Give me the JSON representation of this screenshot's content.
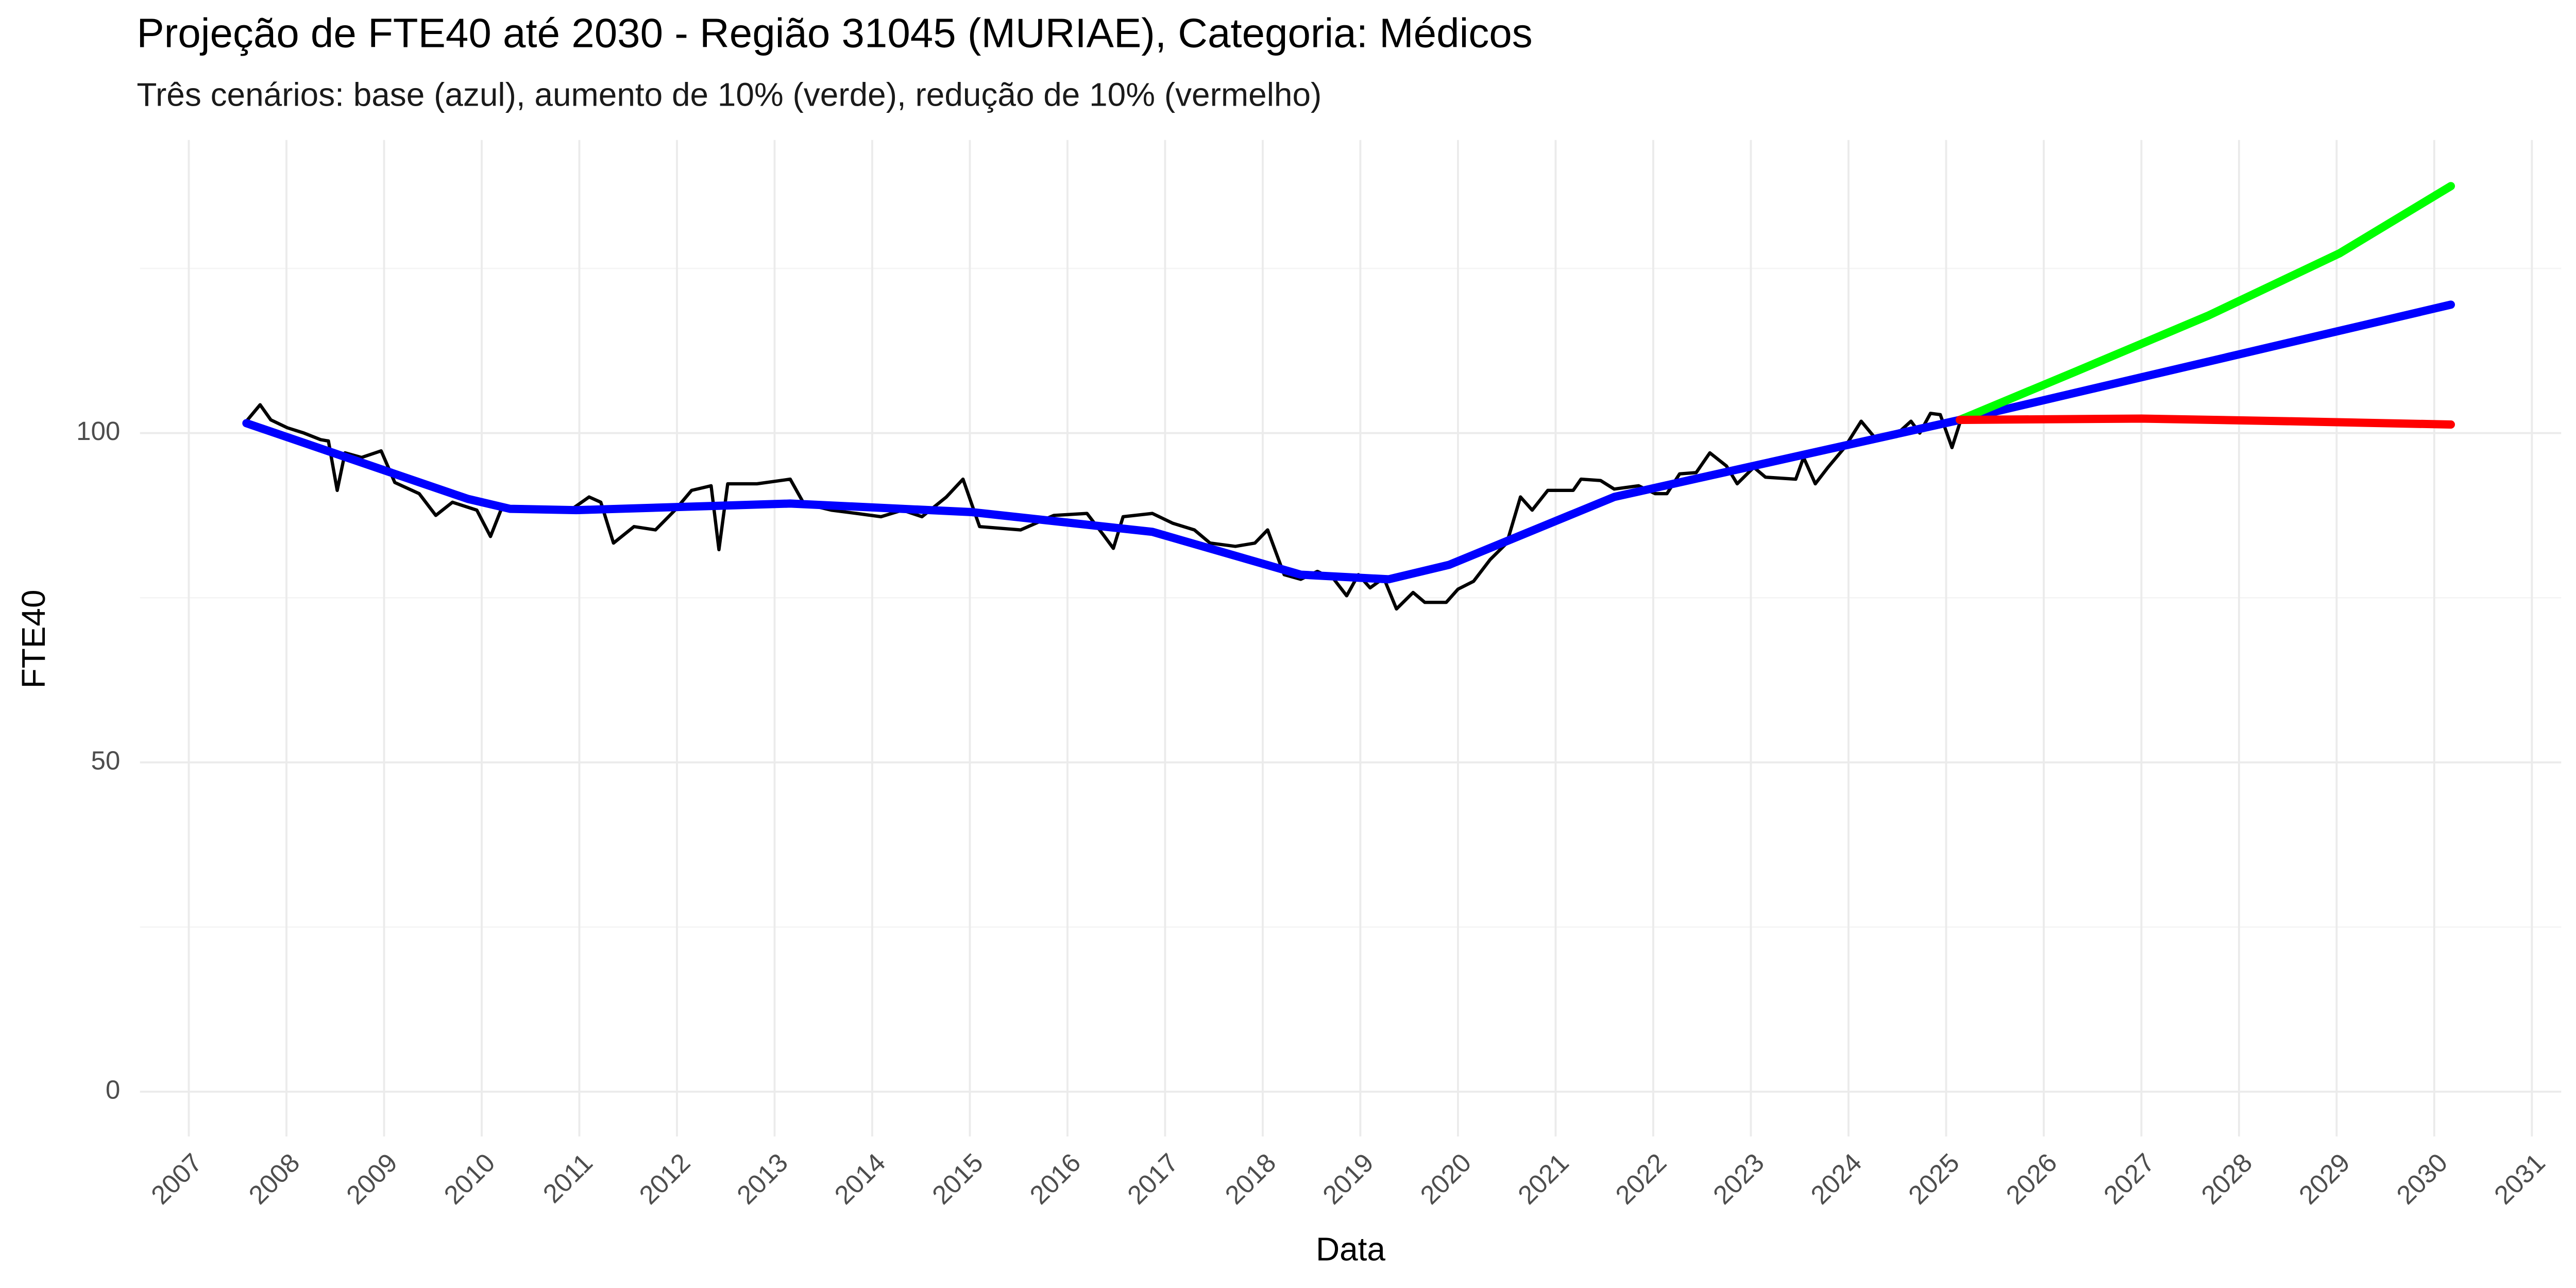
{
  "chart_data": {
    "type": "line",
    "title": "Projeção de FTE40 até 2030 - Região 31045 (MURIAE), Categoria: Médicos",
    "subtitle": "Três cenários: base (azul), aumento de 10% (verde), redução de 10% (vermelho)",
    "x_label": "Data",
    "y_label": "FTE40",
    "xlim": [
      2006.5,
      2031.3
    ],
    "ylim": [
      -6.8,
      144.5
    ],
    "xticks": [
      2007,
      2008,
      2009,
      2010,
      2011,
      2012,
      2013,
      2014,
      2015,
      2016,
      2017,
      2018,
      2019,
      2020,
      2021,
      2022,
      2023,
      2024,
      2025,
      2026,
      2027,
      2028,
      2029,
      2030,
      2031
    ],
    "yticks": [
      0,
      50,
      100
    ],
    "grid": true,
    "series": [
      {
        "color": "#000000",
        "x": [
          2007.59,
          2007.73,
          2007.84,
          2008.01,
          2008.18,
          2008.35,
          2008.43,
          2008.52,
          2008.6,
          2008.77,
          2008.97,
          2009.11,
          2009.36,
          2009.53,
          2009.7,
          2009.95,
          2010.09,
          2010.21,
          2010.46,
          2010.88,
          2011.1,
          2011.22,
          2011.35,
          2011.56,
          2011.78,
          2011.98,
          2012.15,
          2012.35,
          2012.43,
          2012.52,
          2012.82,
          2013.16,
          2013.3,
          2013.58,
          2013.84,
          2014.09,
          2014.31,
          2014.51,
          2014.76,
          2014.93,
          2015.1,
          2015.52,
          2015.86,
          2016.2,
          2016.37,
          2016.47,
          2016.57,
          2016.87,
          2017.08,
          2017.3,
          2017.46,
          2017.72,
          2017.92,
          2018.05,
          2018.22,
          2018.39,
          2018.56,
          2018.73,
          2018.86,
          2018.98,
          2019.1,
          2019.24,
          2019.37,
          2019.54,
          2019.66,
          2019.88,
          2020.0,
          2020.16,
          2020.33,
          2020.5,
          2020.64,
          2020.76,
          2020.92,
          2021.18,
          2021.26,
          2021.46,
          2021.6,
          2021.85,
          2022.02,
          2022.14,
          2022.27,
          2022.44,
          2022.58,
          2022.75,
          2022.86,
          2023.03,
          2023.15,
          2023.46,
          2023.54,
          2023.66,
          2023.79,
          2023.96,
          2024.13,
          2024.27,
          2024.47,
          2024.64,
          2024.73,
          2024.84,
          2024.94,
          2025.06,
          2025.14
        ],
        "values": [
          101.8,
          104.3,
          102,
          100.8,
          100,
          99,
          98.8,
          91.3,
          97,
          96.3,
          97.3,
          92.5,
          90.8,
          87.5,
          89.5,
          88.3,
          84.3,
          88.8,
          88.5,
          88,
          90.3,
          89.5,
          83.3,
          85.8,
          85.3,
          88.3,
          91.3,
          92,
          82.3,
          92.3,
          92.3,
          93,
          89.3,
          88.3,
          87.8,
          87.3,
          88.3,
          87.3,
          90.3,
          93,
          85.8,
          85.3,
          87.5,
          87.8,
          84.5,
          82.5,
          87.3,
          87.8,
          86.3,
          85.3,
          83.3,
          82.8,
          83.3,
          85.3,
          78.5,
          77.8,
          79,
          77.8,
          75.3,
          78.5,
          76.5,
          78,
          73.3,
          75.8,
          74.3,
          74.3,
          76.3,
          77.5,
          80.8,
          83.3,
          90.3,
          88.3,
          91.3,
          91.3,
          93,
          92.8,
          91.5,
          92,
          90.8,
          90.8,
          93.8,
          94,
          97,
          95,
          92.3,
          94.8,
          93.3,
          93,
          96.3,
          92.3,
          94.8,
          97.8,
          101.8,
          99.3,
          99.5,
          101.8,
          100,
          103,
          102.8,
          97.8,
          101.5
        ]
      },
      {
        "color": "#0000ff",
        "x": [
          2007.59,
          2009.86,
          2010.29,
          2010.97,
          2013.16,
          2015.02,
          2016.87,
          2018.39,
          2019.29,
          2019.91,
          2021.6,
          2025.14,
          2030.17
        ],
        "values": [
          101.5,
          90,
          88.5,
          88.3,
          89.3,
          88,
          85,
          78.5,
          77.8,
          80,
          90.3,
          102,
          119.5
        ]
      },
      {
        "color": "#00ff00",
        "x": [
          2025.14,
          2026.32,
          2027.68,
          2029.03,
          2030.17
        ],
        "values": [
          102,
          109.3,
          117.8,
          127.3,
          137.5
        ]
      },
      {
        "color": "#ff0000",
        "x": [
          2025.14,
          2027,
          2028.5,
          2030.17
        ],
        "values": [
          102,
          102.2,
          101.8,
          101.3
        ]
      }
    ]
  }
}
